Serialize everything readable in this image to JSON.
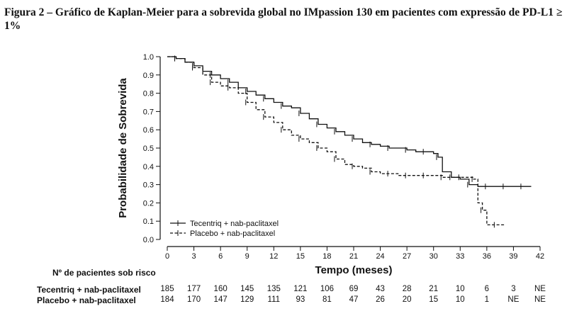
{
  "figure": {
    "caption": "Figura 2 – Gráfico de Kaplan-Meier para a sobrevida global no IMpassion 130 em pacientes com expressão de PD-L1 ≥ 1%"
  },
  "chart_data": {
    "type": "line",
    "xlabel": "Tempo (meses)",
    "ylabel": "Probabilidade de Sobrevida",
    "xlim": [
      0,
      42
    ],
    "ylim": [
      0,
      1.0
    ],
    "x_ticks": [
      "0",
      "3",
      "6",
      "9",
      "12",
      "15",
      "18",
      "21",
      "24",
      "27",
      "30",
      "33",
      "36",
      "39",
      "42"
    ],
    "y_ticks": [
      "0.0",
      "0.1",
      "0.2",
      "0.3",
      "0.4",
      "0.5",
      "0.6",
      "0.7",
      "0.8",
      "0.9",
      "1.0"
    ],
    "grid": false,
    "legend_position": "bottom-left",
    "series": [
      {
        "name": "Tecentriq + nab-paclitaxel",
        "style": "solid",
        "color": "#111111",
        "x": [
          0,
          1,
          2,
          3,
          4,
          5,
          6,
          7,
          8,
          9,
          10,
          11,
          12,
          13,
          14,
          15,
          16,
          17,
          18,
          19,
          20,
          21,
          22,
          23,
          24,
          25,
          26,
          27,
          28,
          29,
          30,
          30.5,
          31,
          32,
          33,
          34,
          35,
          36,
          37,
          38,
          39,
          40,
          41
        ],
        "y": [
          1.0,
          0.99,
          0.97,
          0.95,
          0.92,
          0.9,
          0.88,
          0.86,
          0.83,
          0.81,
          0.79,
          0.77,
          0.75,
          0.73,
          0.72,
          0.69,
          0.66,
          0.63,
          0.61,
          0.59,
          0.57,
          0.55,
          0.53,
          0.52,
          0.51,
          0.5,
          0.5,
          0.49,
          0.48,
          0.48,
          0.47,
          0.45,
          0.37,
          0.34,
          0.33,
          0.3,
          0.29,
          0.29,
          0.29,
          0.29,
          0.29,
          0.29,
          0.29
        ]
      },
      {
        "name": "Placebo + nab-paclitaxel",
        "style": "dashed",
        "color": "#111111",
        "x": [
          0,
          1,
          2,
          3,
          4,
          5,
          6,
          7,
          8,
          9,
          10,
          11,
          12,
          13,
          14,
          15,
          16,
          17,
          18,
          19,
          20,
          21,
          22,
          23,
          24,
          25,
          26,
          27,
          28,
          29,
          30,
          31,
          32,
          33,
          34,
          34.5,
          35,
          35.5,
          36,
          37,
          38
        ],
        "y": [
          1.0,
          0.99,
          0.97,
          0.94,
          0.9,
          0.86,
          0.84,
          0.83,
          0.8,
          0.75,
          0.71,
          0.67,
          0.64,
          0.6,
          0.57,
          0.55,
          0.53,
          0.5,
          0.48,
          0.44,
          0.41,
          0.4,
          0.39,
          0.37,
          0.36,
          0.36,
          0.35,
          0.35,
          0.35,
          0.35,
          0.35,
          0.34,
          0.34,
          0.34,
          0.34,
          0.33,
          0.2,
          0.16,
          0.08,
          0.08,
          0.08
        ]
      }
    ],
    "risk_table": {
      "title": "Nº de pacientes sob risco",
      "time_points": [
        0,
        3,
        6,
        9,
        12,
        15,
        18,
        21,
        24,
        27,
        30,
        33,
        36,
        39,
        42
      ],
      "rows": [
        {
          "name": "Tecentriq + nab-paclitaxel",
          "values": [
            "185",
            "177",
            "160",
            "145",
            "135",
            "121",
            "106",
            "69",
            "43",
            "28",
            "21",
            "10",
            "6",
            "3",
            "NE"
          ]
        },
        {
          "name": "Placebo + nab-paclitaxel",
          "values": [
            "184",
            "170",
            "147",
            "129",
            "111",
            "93",
            "81",
            "47",
            "26",
            "20",
            "15",
            "10",
            "1",
            "NE",
            "NE"
          ]
        }
      ]
    }
  }
}
